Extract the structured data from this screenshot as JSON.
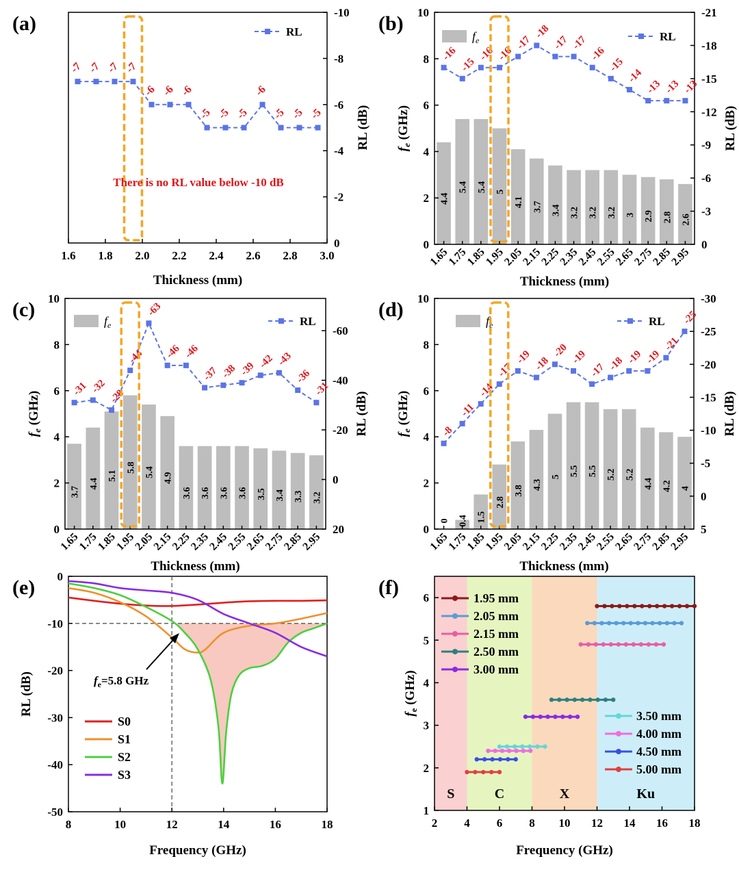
{
  "chart_data": [
    {
      "panel": "(a)",
      "type": "line",
      "xlabel": "Thickness (mm)",
      "ylabel": "",
      "y2label": "RL (dB)",
      "xlim": [
        1.6,
        3.0
      ],
      "xticks": [
        "1.6",
        "1.8",
        "2.0",
        "2.2",
        "2.4",
        "2.6",
        "2.8",
        "3.0"
      ],
      "y2lim": [
        0,
        -10
      ],
      "y2ticks": [
        "0",
        "-2",
        "-4",
        "-6",
        "-8",
        "-10"
      ],
      "annotation": "There is no RL value below -10 dB",
      "legend": [
        "RL"
      ],
      "legend_position": "top-right",
      "highlight_x": 1.95,
      "series": [
        {
          "name": "RL",
          "x": [
            1.65,
            1.75,
            1.85,
            1.95,
            2.05,
            2.15,
            2.25,
            2.35,
            2.45,
            2.55,
            2.65,
            2.75,
            2.85,
            2.95
          ],
          "values": [
            -7,
            -7,
            -7,
            -7,
            -6,
            -6,
            -6,
            -5,
            -5,
            -5,
            -6,
            -5,
            -5,
            -5
          ],
          "labels": [
            "-7",
            "-7",
            "-7",
            "-7",
            "-6",
            "-6",
            "-6",
            "-5",
            "-5",
            "-5",
            "-6",
            "-5",
            "-5",
            "-5"
          ]
        }
      ]
    },
    {
      "panel": "(b)",
      "type": "bar",
      "xlabel": "Thickness (mm)",
      "ylabel": "fe (GHz)",
      "y2label": "RL (dB)",
      "categories": [
        "1.65",
        "1.75",
        "1.85",
        "1.95",
        "2.05",
        "2.15",
        "2.25",
        "2.35",
        "2.45",
        "2.55",
        "2.65",
        "2.75",
        "2.85",
        "2.95"
      ],
      "ylim": [
        0,
        10
      ],
      "yticks": [
        "0",
        "2",
        "4",
        "6",
        "8",
        "10"
      ],
      "y2lim": [
        0,
        -21
      ],
      "y2ticks": [
        "0",
        "-3",
        "-6",
        "-9",
        "-12",
        "-15",
        "-18",
        "-21"
      ],
      "legend": [
        "fe",
        "RL"
      ],
      "highlight_category": "1.95",
      "series": [
        {
          "name": "fe",
          "values": [
            4.4,
            5.4,
            5.4,
            5.0,
            4.1,
            3.7,
            3.4,
            3.2,
            3.2,
            3.2,
            3.0,
            2.9,
            2.8,
            2.6
          ],
          "labels": [
            "4.4",
            "5.4",
            "5.4",
            "5",
            "4.1",
            "3.7",
            "3.4",
            "3.2",
            "3.2",
            "3.2",
            "3",
            "2.9",
            "2.8",
            "2.6"
          ]
        },
        {
          "name": "RL",
          "values": [
            -16,
            -15,
            -16,
            -16,
            -17,
            -18,
            -17,
            -17,
            -16,
            -15,
            -14,
            -13,
            -13,
            -13
          ],
          "labels": [
            "-16",
            "-15",
            "-16",
            "-16",
            "-17",
            "-18",
            "-17",
            "-17",
            "-16",
            "-15",
            "-14",
            "-13",
            "-13",
            "-13"
          ]
        }
      ]
    },
    {
      "panel": "(c)",
      "type": "bar",
      "xlabel": "Thickness (mm)",
      "ylabel": "fe (GHz)",
      "y2label": "RL (dB)",
      "categories": [
        "1.65",
        "1.75",
        "1.85",
        "1.95",
        "2.05",
        "2.15",
        "2.25",
        "2.35",
        "2.45",
        "2.55",
        "2.65",
        "2.75",
        "2.85",
        "2.95"
      ],
      "ylim": [
        0,
        10
      ],
      "yticks": [
        "0",
        "2",
        "4",
        "6",
        "8",
        "10"
      ],
      "y2lim": [
        20,
        -73
      ],
      "y2ticks": [
        "20",
        "0",
        "-20",
        "-40",
        "-60"
      ],
      "legend": [
        "fe",
        "RL"
      ],
      "highlight_category": "1.95",
      "series": [
        {
          "name": "fe",
          "values": [
            3.7,
            4.4,
            5.1,
            5.8,
            5.4,
            4.9,
            3.6,
            3.6,
            3.6,
            3.6,
            3.5,
            3.4,
            3.3,
            3.2
          ],
          "labels": [
            "3.7",
            "4.4",
            "5.1",
            "5.8",
            "5.4",
            "4.9",
            "3.6",
            "3.6",
            "3.6",
            "3.6",
            "3.5",
            "3.4",
            "3.3",
            "3.2"
          ]
        },
        {
          "name": "RL",
          "values": [
            -31,
            -32,
            -28,
            -44,
            -63,
            -46,
            -46,
            -37,
            -38,
            -39,
            -42,
            -43,
            -36,
            -31
          ],
          "labels": [
            "-31",
            "-32",
            "-28",
            "-44",
            "-63",
            "-46",
            "-46",
            "-37",
            "-38",
            "-39",
            "-42",
            "-43",
            "-36",
            "-31"
          ]
        }
      ]
    },
    {
      "panel": "(d)",
      "type": "bar",
      "xlabel": "Thickness (mm)",
      "ylabel": "fe (GHz)",
      "y2label": "RL (dB)",
      "categories": [
        "1.65",
        "1.75",
        "1.85",
        "1.95",
        "2.05",
        "2.15",
        "2.25",
        "2.35",
        "2.45",
        "2.55",
        "2.65",
        "2.75",
        "2.85",
        "2.95"
      ],
      "ylim": [
        0,
        10
      ],
      "yticks": [
        "0",
        "2",
        "4",
        "6",
        "8",
        "10"
      ],
      "y2lim": [
        5,
        -30
      ],
      "y2ticks": [
        "5",
        "0",
        "-5",
        "-10",
        "-15",
        "-20",
        "-25",
        "-30"
      ],
      "legend": [
        "fe",
        "RL"
      ],
      "highlight_category": "1.95",
      "series": [
        {
          "name": "fe",
          "values": [
            0,
            0.4,
            1.5,
            2.8,
            3.8,
            4.3,
            5.0,
            5.5,
            5.5,
            5.2,
            5.2,
            4.4,
            4.2,
            4.0
          ],
          "labels": [
            "0",
            "0.4",
            "1.5",
            "2.8",
            "3.8",
            "4.3",
            "5",
            "5.5",
            "5.5",
            "5.2",
            "5.2",
            "4.4",
            "4.2",
            "4"
          ]
        },
        {
          "name": "RL",
          "values": [
            -8,
            -11,
            -14,
            -17,
            -19,
            -18,
            -20,
            -19,
            -17,
            -18,
            -19,
            -19,
            -21,
            -25
          ],
          "labels": [
            "-8",
            "-11",
            "-14",
            "-17",
            "-19",
            "-18",
            "-20",
            "-19",
            "-17",
            "-18",
            "-19",
            "-19",
            "-21",
            "-25"
          ]
        }
      ]
    },
    {
      "panel": "(e)",
      "type": "line",
      "xlabel": "Frequency (GHz)",
      "ylabel": "RL (dB)",
      "xlim": [
        8,
        18
      ],
      "xticks": [
        "8",
        "10",
        "12",
        "14",
        "16",
        "18"
      ],
      "ylim": [
        -50,
        0
      ],
      "yticks": [
        "0",
        "-10",
        "-20",
        "-30",
        "-40",
        "-50"
      ],
      "annotation": "fe=5.8 GHz",
      "reference_lines": {
        "x": 12,
        "y": -10
      },
      "legend_position": "bottom-left",
      "series": [
        {
          "name": "S0",
          "color": "#e02020",
          "x": [
            8,
            9,
            10,
            11,
            12,
            13,
            14,
            15,
            16,
            17,
            18
          ],
          "values": [
            -4.5,
            -5.2,
            -5.8,
            -6.2,
            -6.3,
            -6.0,
            -5.6,
            -5.3,
            -5.2,
            -5.2,
            -5.1
          ]
        },
        {
          "name": "S1",
          "color": "#f0902a",
          "x": [
            8,
            9,
            10,
            11,
            12,
            12.5,
            13,
            13.3,
            14,
            15,
            16,
            17,
            18
          ],
          "values": [
            -2.5,
            -3.5,
            -5.5,
            -8.5,
            -13,
            -15.5,
            -16.2,
            -15.5,
            -12,
            -10.5,
            -10,
            -9,
            -7.8
          ]
        },
        {
          "name": "S2",
          "color": "#4cd040",
          "x": [
            8,
            9,
            10,
            11,
            12,
            12.5,
            13,
            13.5,
            13.8,
            13.95,
            14.1,
            14.3,
            14.6,
            15,
            15.5,
            16,
            16.5,
            17,
            17.5,
            18
          ],
          "values": [
            -1.5,
            -2.5,
            -4,
            -6.5,
            -9.5,
            -12,
            -15.5,
            -22,
            -32,
            -44,
            -33,
            -25,
            -21,
            -19.5,
            -19,
            -17.5,
            -14,
            -12,
            -11,
            -10
          ]
        },
        {
          "name": "S3",
          "color": "#8a2be2",
          "x": [
            8,
            9,
            10,
            11,
            12,
            13,
            14,
            15,
            16,
            17,
            18
          ],
          "values": [
            -1,
            -1.5,
            -2.5,
            -3,
            -3.5,
            -5,
            -8,
            -10,
            -12,
            -15,
            -17
          ]
        }
      ]
    },
    {
      "panel": "(f)",
      "type": "line",
      "xlabel": "Frequency (GHz)",
      "ylabel": "fe (GHz)",
      "xlim": [
        2,
        18
      ],
      "xticks": [
        "2",
        "4",
        "6",
        "8",
        "10",
        "12",
        "14",
        "16",
        "18"
      ],
      "ylim": [
        1,
        6.5
      ],
      "yticks": [
        "1",
        "2",
        "3",
        "4",
        "5",
        "6"
      ],
      "bands": [
        {
          "name": "S",
          "from": 2,
          "to": 4,
          "color": "#fbd0d0"
        },
        {
          "name": "C",
          "from": 4,
          "to": 8,
          "color": "#e6f5c0"
        },
        {
          "name": "X",
          "from": 8,
          "to": 12,
          "color": "#fbd9bc"
        },
        {
          "name": "Ku",
          "from": 12,
          "to": 18,
          "color": "#cdeef9"
        }
      ],
      "series": [
        {
          "name": "1.95 mm",
          "color": "#8b1a1a",
          "x": [
            12.0,
            18.0
          ],
          "y": 5.8
        },
        {
          "name": "2.05 mm",
          "color": "#5b9bd5",
          "x": [
            11.4,
            17.2
          ],
          "y": 5.4
        },
        {
          "name": "2.15 mm",
          "color": "#e75ea8",
          "x": [
            11.0,
            16.1
          ],
          "y": 4.9
        },
        {
          "name": "2.50 mm",
          "color": "#2f7f7f",
          "x": [
            9.2,
            13.0
          ],
          "y": 3.6
        },
        {
          "name": "3.00 mm",
          "color": "#8a2be2",
          "x": [
            7.6,
            10.8
          ],
          "y": 3.2
        },
        {
          "name": "3.50 mm",
          "color": "#66d6d6",
          "x": [
            6.0,
            8.8
          ],
          "y": 2.5
        },
        {
          "name": "4.00 mm",
          "color": "#f06ce0",
          "x": [
            5.3,
            7.9
          ],
          "y": 2.4
        },
        {
          "name": "4.50 mm",
          "color": "#3a50e0",
          "x": [
            4.6,
            7.0
          ],
          "y": 2.2
        },
        {
          "name": "5.00 mm",
          "color": "#e04040",
          "x": [
            4.0,
            6.0
          ],
          "y": 1.9
        }
      ]
    }
  ]
}
